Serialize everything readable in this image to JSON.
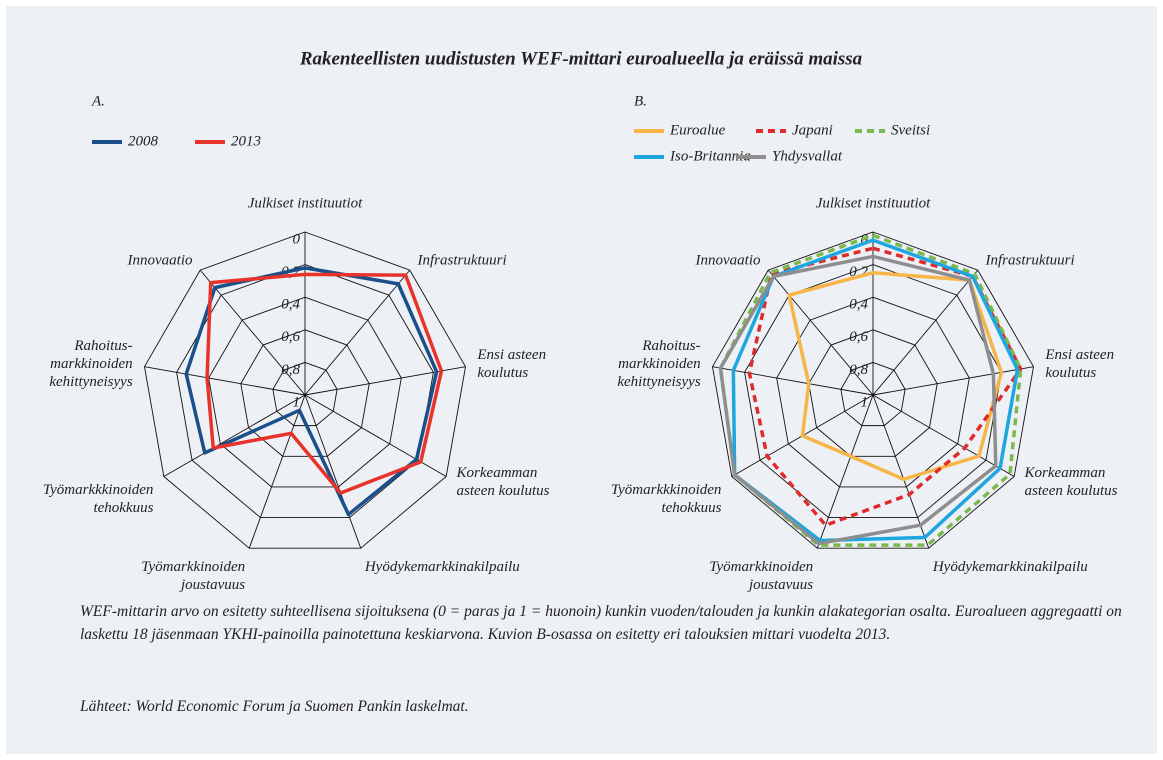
{
  "title": "Rakenteellisten uudistusten WEF-mittari euroalueella ja eräissä maissa",
  "chart_data": [
    {
      "type": "radar",
      "label": "A.",
      "categories": [
        [
          "Julkiset  instituutiot"
        ],
        [
          "Infrastruktuuri"
        ],
        [
          "Ensi asteen",
          "koulutus"
        ],
        [
          "Korkeamman",
          "asteen koulutus"
        ],
        [
          "Hyödykemarkkinakilpailu"
        ],
        [
          "Työmarkkinoiden",
          "joustavuus"
        ],
        [
          "Työmarkkkinoiden",
          "tehokkuus"
        ],
        [
          "Rahoitus-",
          "markkinoiden",
          "kehittyneisyys"
        ],
        [
          "Innovaatio"
        ]
      ],
      "rlim": [
        1,
        0
      ],
      "rticks": [
        0,
        {
          "value": 0.2,
          "label": "0,2"
        },
        {
          "value": 0.4,
          "label": "0,4"
        },
        {
          "value": 0.6,
          "label": "0,6"
        },
        {
          "value": 0.8,
          "label": "0,8"
        },
        1
      ],
      "series": [
        {
          "name": "2008",
          "color": "#1b4f8a",
          "dashed": false,
          "values": [
            0.22,
            0.11,
            0.18,
            0.21,
            0.22,
            0.9,
            0.29,
            0.26,
            0.14
          ]
        },
        {
          "name": "2013",
          "color": "#e8332b",
          "dashed": false,
          "values": [
            0.26,
            0.04,
            0.15,
            0.18,
            0.36,
            0.75,
            0.35,
            0.39,
            0.1
          ]
        }
      ]
    },
    {
      "type": "radar",
      "label": "B.",
      "categories": [
        [
          "Julkiset  instituutiot"
        ],
        [
          "Infrastruktuuri"
        ],
        [
          "Ensi asteen",
          "koulutus"
        ],
        [
          "Korkeamman",
          "asteen koulutus"
        ],
        [
          "Hyödykemarkkinakilpailu"
        ],
        [
          "Työmarkkinoiden",
          "joustavuus"
        ],
        [
          "Työmarkkkinoiden",
          "tehokkuus"
        ],
        [
          "Rahoitus-",
          "markkinoiden",
          "kehittyneisyys"
        ],
        [
          "Innovaatio"
        ]
      ],
      "rlim": [
        1,
        0
      ],
      "rticks": [
        0,
        {
          "value": 0.2,
          "label": "0,2"
        },
        {
          "value": 0.4,
          "label": "0,4"
        },
        {
          "value": 0.6,
          "label": "0,6"
        },
        {
          "value": 0.8,
          "label": "0,8"
        },
        1
      ],
      "series": [
        {
          "name": "Euroalue",
          "color": "#f7b548",
          "dashed": false,
          "values": [
            0.25,
            0.08,
            0.2,
            0.25,
            0.45,
            0.6,
            0.5,
            0.6,
            0.2
          ]
        },
        {
          "name": "Japani",
          "color": "#e02b2b",
          "dashed": true,
          "values": [
            0.1,
            0.05,
            0.08,
            0.35,
            0.35,
            0.15,
            0.25,
            0.23,
            0.03
          ]
        },
        {
          "name": "Sveitsi",
          "color": "#7cb94c",
          "dashed": true,
          "values": [
            0.02,
            0.03,
            0.08,
            0.03,
            0.02,
            0.02,
            0.02,
            0.05,
            0.02
          ]
        },
        {
          "name": "Iso-Britannia",
          "color": "#1da6df",
          "dashed": false,
          "values": [
            0.05,
            0.05,
            0.1,
            0.1,
            0.07,
            0.05,
            0.02,
            0.13,
            0.05
          ]
        },
        {
          "name": "Yhdysvallat",
          "color": "#8e8e8e",
          "dashed": false,
          "values": [
            0.15,
            0.08,
            0.25,
            0.13,
            0.15,
            0.03,
            0.02,
            0.05,
            0.05
          ]
        }
      ]
    }
  ],
  "note": "WEF-mittarin arvo on esitetty suhteellisena sijoituksena (0 = paras ja 1 = huonoin) kunkin vuoden/talouden ja kunkin alakategorian osalta. Euroalueen aggregaatti on laskettu 18 jäsenmaan YKHI-painoilla painotettuna keskiarvona. Kuvion B-osassa on esitetty eri talouksien mittari vuodelta 2013.",
  "source": "Lähteet: World Economic Forum ja Suomen Pankin laskelmat."
}
